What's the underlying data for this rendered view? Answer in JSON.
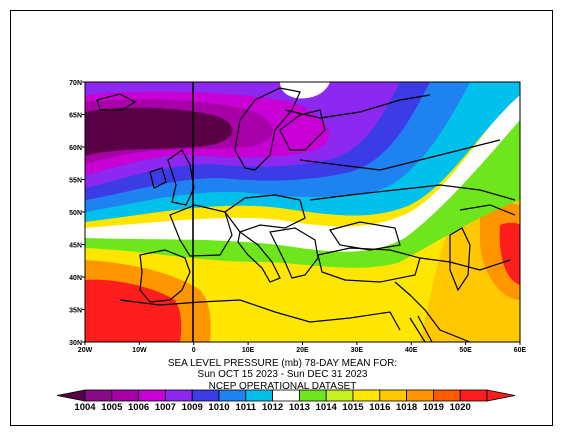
{
  "map": {
    "lat_labels": [
      "70N",
      "65N",
      "60N",
      "55N",
      "50N",
      "45N",
      "40N",
      "35N",
      "30N"
    ],
    "lon_labels": [
      "20W",
      "10W",
      "0",
      "10E",
      "20E",
      "30E",
      "40E",
      "50E",
      "60E"
    ]
  },
  "caption": {
    "line1": "SEA LEVEL PRESSURE (mb)    78-DAY MEAN FOR:",
    "line2": "Sun OCT 15 2023 - Sun DEC 31 2023",
    "line3": "NCEP OPERATIONAL DATASET"
  },
  "legend": {
    "levels": [
      "1004",
      "1005",
      "1006",
      "1007",
      "1009",
      "1010",
      "1011",
      "1012",
      "1013",
      "1014",
      "1015",
      "1016",
      "1018",
      "1019",
      "1020"
    ],
    "colors": [
      "#8a0a8a",
      "#a800a8",
      "#c800d6",
      "#8c28f0",
      "#3c3ce6",
      "#1e82f0",
      "#00c0ec",
      "#ffffff",
      "#6ee61e",
      "#c8f01e",
      "#ffe600",
      "#ffc800",
      "#ff9600",
      "#ff5a00",
      "#ff1e1e"
    ],
    "below_color": "#5a0046",
    "above_color": "#ff1e1e"
  }
}
